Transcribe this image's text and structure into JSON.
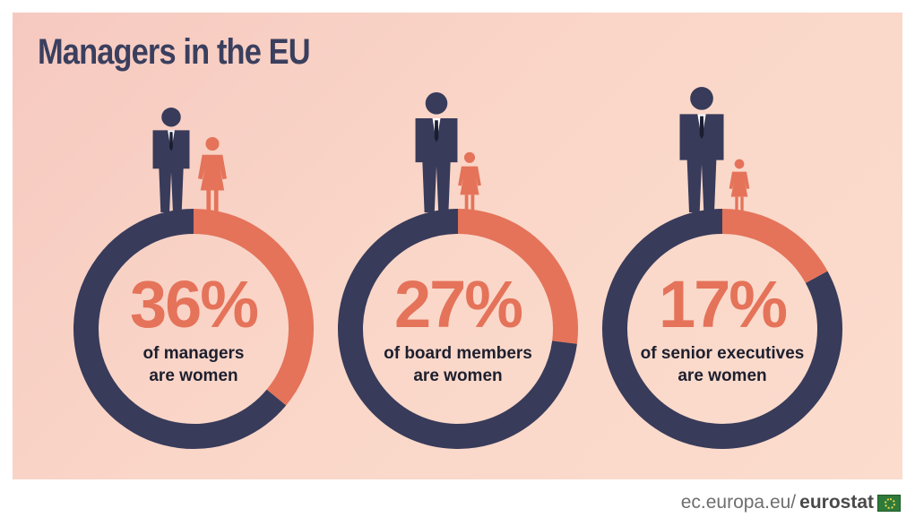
{
  "title": "Managers in the EU",
  "footer": {
    "url": "ec.europa.eu/",
    "brand": "eurostat"
  },
  "colors": {
    "men": "#383b5a",
    "women": "#e4735a",
    "text": "#1d1f2e"
  },
  "icons": {
    "man": "man-icon",
    "woman": "woman-icon",
    "flag": "eu-flag-icon"
  },
  "chart_data": [
    {
      "type": "pie",
      "label": "36%",
      "caption": [
        "of managers",
        "are women"
      ],
      "values": [
        {
          "name": "women",
          "value": 36
        },
        {
          "name": "men",
          "value": 64
        }
      ]
    },
    {
      "type": "pie",
      "label": "27%",
      "caption": [
        "of board members",
        "are women"
      ],
      "values": [
        {
          "name": "women",
          "value": 27
        },
        {
          "name": "men",
          "value": 73
        }
      ]
    },
    {
      "type": "pie",
      "label": "17%",
      "caption": [
        "of senior executives",
        "are women"
      ],
      "values": [
        {
          "name": "women",
          "value": 17
        },
        {
          "name": "men",
          "value": 83
        }
      ]
    }
  ]
}
